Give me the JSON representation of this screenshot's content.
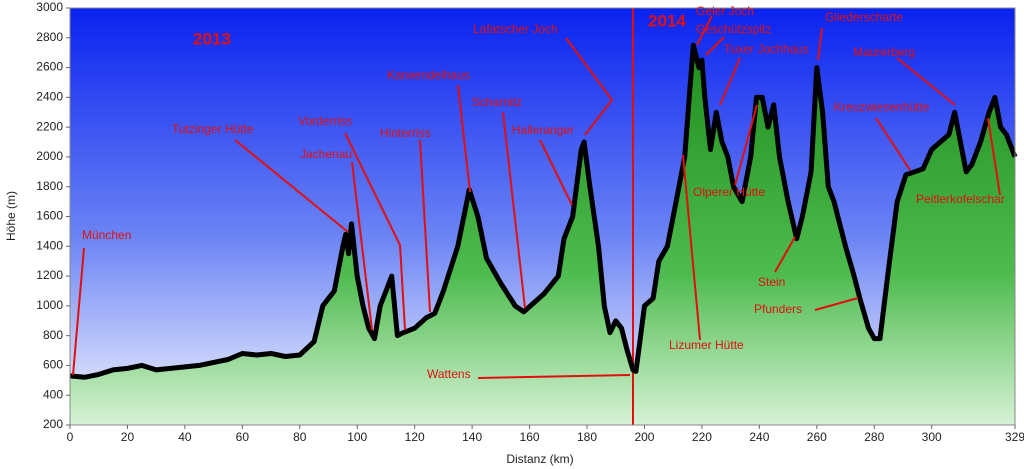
{
  "chart_data": {
    "type": "area",
    "x_label": "Distanz (km)",
    "y_label": "Höhe (m)",
    "xlim": [
      0,
      329
    ],
    "xticks": [
      0,
      20,
      40,
      60,
      80,
      100,
      120,
      140,
      160,
      180,
      200,
      220,
      240,
      260,
      280,
      300,
      329
    ],
    "ylim": [
      200,
      3000
    ],
    "yticks": [
      200,
      400,
      600,
      800,
      1000,
      1200,
      1400,
      1600,
      1800,
      2000,
      2200,
      2400,
      2600,
      2800,
      3000
    ],
    "grid": false,
    "color": "#000000",
    "fill_color": "#22a022",
    "x": [
      0,
      5,
      10,
      15,
      20,
      25,
      30,
      35,
      40,
      45,
      50,
      55,
      60,
      65,
      70,
      75,
      80,
      85,
      88,
      90,
      92,
      95,
      96,
      97,
      98,
      100,
      102,
      104,
      106,
      108,
      110,
      112,
      114,
      116,
      120,
      124,
      127,
      130,
      135,
      139,
      142,
      145,
      150,
      155,
      158,
      165,
      170,
      172,
      175,
      178,
      179,
      181,
      184,
      186,
      188,
      190,
      192,
      194,
      196,
      197,
      198,
      200,
      203,
      205,
      208,
      211,
      214,
      216,
      217,
      219,
      220,
      221,
      223,
      225,
      227,
      229,
      231,
      234,
      237,
      239,
      241,
      243,
      245,
      247,
      250,
      253,
      255,
      258,
      260,
      262,
      264,
      266,
      270,
      273,
      275,
      278,
      280,
      282,
      285,
      288,
      291,
      294,
      297,
      300,
      303,
      306,
      308,
      310,
      312,
      314,
      317,
      320,
      322,
      324,
      326,
      329
    ],
    "values": [
      530,
      520,
      540,
      570,
      580,
      600,
      570,
      580,
      590,
      600,
      620,
      640,
      680,
      670,
      680,
      660,
      670,
      760,
      1000,
      1050,
      1100,
      1400,
      1480,
      1350,
      1550,
      1200,
      1000,
      850,
      780,
      1000,
      1100,
      1200,
      800,
      820,
      850,
      920,
      950,
      1100,
      1400,
      1780,
      1600,
      1320,
      1150,
      1000,
      960,
      1080,
      1200,
      1450,
      1600,
      2050,
      2100,
      1800,
      1400,
      1000,
      820,
      900,
      850,
      700,
      570,
      560,
      700,
      1000,
      1050,
      1300,
      1400,
      1700,
      2000,
      2500,
      2750,
      2600,
      2650,
      2400,
      2050,
      2300,
      2100,
      2000,
      1800,
      1700,
      2000,
      2400,
      2400,
      2200,
      2350,
      2000,
      1700,
      1450,
      1600,
      1900,
      2600,
      2300,
      1800,
      1700,
      1400,
      1200,
      1050,
      850,
      780,
      780,
      1250,
      1700,
      1880,
      1900,
      1920,
      2050,
      2100,
      2150,
      2300,
      2100,
      1900,
      1950,
      2100,
      2300,
      2400,
      2200,
      2150,
      2000
    ],
    "year_labels": [
      "2013",
      "2014"
    ],
    "annotations": [
      "München",
      "Tutzinger Hütte",
      "Vorderriss",
      "Jachenau",
      "Hinterriss",
      "Karwendelhaus",
      "Scharnitz",
      "Lafatscher Joch",
      "Halleranger",
      "Geier Joch",
      "Geschützspitz",
      "Tuxer Jochhaus",
      "Olperer Hütte",
      "Gliederscharte",
      "Maurerberg",
      "Kreuzwiesenhütte",
      "Peitlerkofelschar",
      "Stein",
      "Pfunders",
      "Lizumer Hütte",
      "Wattens"
    ]
  }
}
